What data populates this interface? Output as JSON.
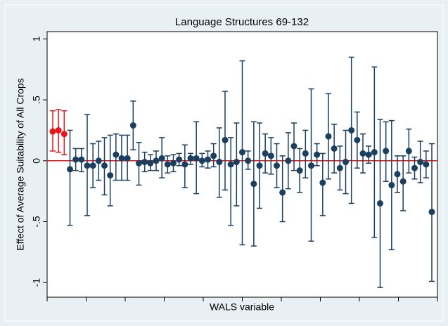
{
  "chart_data": {
    "type": "errorbar",
    "title": "Language Structures 69-132",
    "x_label": "WALS variable",
    "y_label": "Effect of Average Suitability of All Crops",
    "ylim": [
      -1.12,
      1.06
    ],
    "yticks": [
      {
        "value": 1,
        "label": "1"
      },
      {
        "value": 0.5,
        "label": ".5"
      },
      {
        "value": 0,
        "label": "0"
      },
      {
        "value": -0.5,
        "label": "-.5"
      },
      {
        "value": -1,
        "label": "-1"
      }
    ],
    "reference_line": {
      "value": 0,
      "color": "#e8151b"
    },
    "series": [
      {
        "color": "#e8151b",
        "values": [
          0.24,
          0.25,
          0.22
        ],
        "ci_high": [
          0.41,
          0.42,
          0.41
        ],
        "ci_low": [
          0.08,
          0.07,
          0.05
        ]
      },
      {
        "color": "#1a3f5f",
        "values": [
          -0.07,
          0.01,
          0.01,
          -0.04,
          -0.04,
          0.0,
          -0.04,
          -0.12,
          0.05,
          0.02,
          0.02,
          0.29,
          -0.02,
          -0.01,
          -0.02,
          0.0,
          0.02,
          -0.03,
          -0.02,
          0.01,
          -0.03,
          0.02,
          0.02,
          0.0,
          0.01,
          0.04,
          -0.01,
          0.17,
          -0.03,
          -0.01,
          0.07,
          0.0,
          -0.19,
          -0.04,
          0.06,
          0.04,
          -0.04,
          -0.26,
          0.0,
          0.12,
          -0.08,
          0.06,
          -0.04,
          0.05,
          -0.18,
          0.2,
          0.1,
          -0.06,
          -0.01,
          0.25,
          0.17,
          0.06,
          0.05,
          0.07,
          -0.35,
          0.08,
          -0.2,
          -0.11,
          -0.17,
          0.08,
          -0.06,
          -0.01,
          -0.03,
          -0.42
        ],
        "ci_high": [
          0.25,
          0.1,
          0.1,
          0.38,
          0.14,
          0.16,
          0.19,
          0.21,
          0.22,
          0.21,
          0.21,
          0.49,
          0.15,
          0.07,
          0.05,
          0.08,
          0.19,
          0.04,
          0.05,
          0.06,
          0.13,
          0.06,
          0.32,
          0.06,
          0.08,
          0.14,
          0.27,
          0.57,
          0.19,
          0.31,
          0.82,
          0.08,
          0.32,
          0.31,
          0.22,
          0.19,
          0.14,
          0.04,
          0.23,
          0.31,
          0.1,
          0.25,
          0.59,
          0.14,
          0.06,
          0.55,
          0.3,
          0.12,
          0.25,
          0.85,
          0.4,
          0.22,
          0.12,
          0.77,
          0.34,
          0.32,
          0.33,
          0.04,
          0.04,
          0.26,
          0.03,
          0.16,
          0.08,
          0.14
        ],
        "ci_low": [
          -0.53,
          -0.08,
          -0.09,
          -0.45,
          -0.22,
          -0.16,
          -0.28,
          -0.37,
          -0.16,
          -0.16,
          -0.16,
          0.09,
          -0.2,
          -0.09,
          -0.08,
          -0.08,
          -0.14,
          -0.1,
          -0.09,
          -0.04,
          -0.22,
          -0.03,
          -0.27,
          -0.05,
          -0.06,
          -0.05,
          -0.3,
          -0.24,
          -0.53,
          -0.37,
          -0.69,
          -0.07,
          -0.7,
          -0.39,
          -0.1,
          -0.11,
          -0.22,
          -0.5,
          -0.23,
          -0.08,
          -0.26,
          -0.14,
          -0.66,
          -0.04,
          -0.45,
          -0.15,
          -0.1,
          -0.24,
          -0.27,
          -0.35,
          -0.06,
          -0.1,
          -0.02,
          -0.63,
          -1.04,
          -0.17,
          -0.73,
          -0.26,
          -0.41,
          -0.1,
          -0.15,
          -0.18,
          -0.14,
          -0.99
        ]
      }
    ]
  }
}
